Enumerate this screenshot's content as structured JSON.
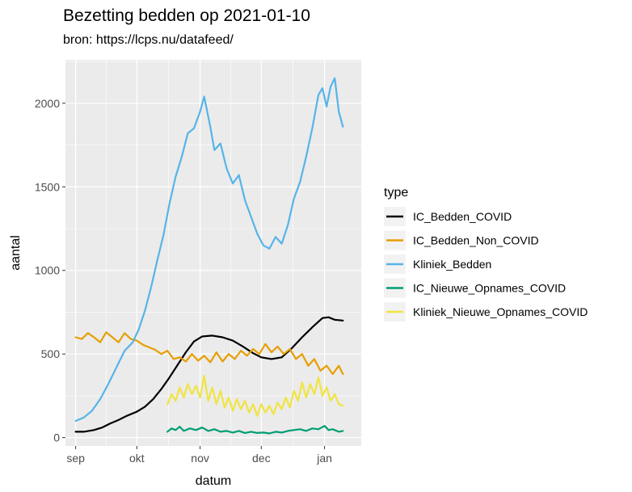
{
  "chart_data": {
    "type": "line",
    "title": "Bezetting bedden op 2021-01-10",
    "subtitle": "bron: https://lcps.nu/datafeed/",
    "xlabel": "datum",
    "ylabel": "aantal",
    "x_ticks": [
      {
        "date": "2020-09-01",
        "label": "sep"
      },
      {
        "date": "2020-10-01",
        "label": "okt"
      },
      {
        "date": "2020-11-01",
        "label": "nov"
      },
      {
        "date": "2020-12-01",
        "label": "dec"
      },
      {
        "date": "2021-01-01",
        "label": "jan"
      }
    ],
    "y_ticks": [
      0,
      500,
      1000,
      1500,
      2000
    ],
    "xlim": [
      "2020-08-27",
      "2021-01-19"
    ],
    "ylim": [
      -50,
      2260
    ],
    "grid": true,
    "legend": {
      "title": "type",
      "position": "right"
    },
    "series": [
      {
        "name": "IC_Bedden_COVID",
        "color": "#000000",
        "points": [
          [
            "2020-09-01",
            35
          ],
          [
            "2020-09-05",
            35
          ],
          [
            "2020-09-10",
            45
          ],
          [
            "2020-09-14",
            60
          ],
          [
            "2020-09-18",
            85
          ],
          [
            "2020-09-22",
            105
          ],
          [
            "2020-09-26",
            130
          ],
          [
            "2020-10-01",
            155
          ],
          [
            "2020-10-05",
            185
          ],
          [
            "2020-10-09",
            230
          ],
          [
            "2020-10-13",
            290
          ],
          [
            "2020-10-17",
            360
          ],
          [
            "2020-10-21",
            435
          ],
          [
            "2020-10-25",
            510
          ],
          [
            "2020-10-29",
            575
          ],
          [
            "2020-11-02",
            605
          ],
          [
            "2020-11-07",
            610
          ],
          [
            "2020-11-12",
            600
          ],
          [
            "2020-11-17",
            580
          ],
          [
            "2020-11-22",
            545
          ],
          [
            "2020-11-27",
            505
          ],
          [
            "2020-12-01",
            480
          ],
          [
            "2020-12-06",
            470
          ],
          [
            "2020-12-11",
            480
          ],
          [
            "2020-12-16",
            535
          ],
          [
            "2020-12-21",
            600
          ],
          [
            "2020-12-26",
            660
          ],
          [
            "2020-12-31",
            715
          ],
          [
            "2021-01-03",
            720
          ],
          [
            "2021-01-06",
            705
          ],
          [
            "2021-01-10",
            700
          ]
        ]
      },
      {
        "name": "IC_Bedden_Non_COVID",
        "color": "#E69F00",
        "points": [
          [
            "2020-09-01",
            600
          ],
          [
            "2020-09-04",
            590
          ],
          [
            "2020-09-07",
            625
          ],
          [
            "2020-09-10",
            600
          ],
          [
            "2020-09-13",
            570
          ],
          [
            "2020-09-16",
            630
          ],
          [
            "2020-09-19",
            600
          ],
          [
            "2020-09-22",
            570
          ],
          [
            "2020-09-25",
            625
          ],
          [
            "2020-09-28",
            590
          ],
          [
            "2020-10-01",
            580
          ],
          [
            "2020-10-04",
            555
          ],
          [
            "2020-10-07",
            540
          ],
          [
            "2020-10-10",
            525
          ],
          [
            "2020-10-13",
            500
          ],
          [
            "2020-10-16",
            520
          ],
          [
            "2020-10-19",
            470
          ],
          [
            "2020-10-22",
            480
          ],
          [
            "2020-10-25",
            455
          ],
          [
            "2020-10-28",
            500
          ],
          [
            "2020-10-31",
            460
          ],
          [
            "2020-11-03",
            490
          ],
          [
            "2020-11-06",
            450
          ],
          [
            "2020-11-09",
            510
          ],
          [
            "2020-11-12",
            455
          ],
          [
            "2020-11-15",
            500
          ],
          [
            "2020-11-18",
            470
          ],
          [
            "2020-11-21",
            520
          ],
          [
            "2020-11-24",
            490
          ],
          [
            "2020-11-27",
            530
          ],
          [
            "2020-11-30",
            500
          ],
          [
            "2020-12-03",
            560
          ],
          [
            "2020-12-06",
            510
          ],
          [
            "2020-12-09",
            545
          ],
          [
            "2020-12-12",
            500
          ],
          [
            "2020-12-15",
            530
          ],
          [
            "2020-12-18",
            470
          ],
          [
            "2020-12-21",
            500
          ],
          [
            "2020-12-24",
            430
          ],
          [
            "2020-12-27",
            470
          ],
          [
            "2020-12-30",
            400
          ],
          [
            "2021-01-02",
            430
          ],
          [
            "2021-01-05",
            380
          ],
          [
            "2021-01-08",
            430
          ],
          [
            "2021-01-10",
            380
          ]
        ]
      },
      {
        "name": "Kliniek_Bedden",
        "color": "#56B4E9",
        "points": [
          [
            "2020-09-01",
            100
          ],
          [
            "2020-09-05",
            120
          ],
          [
            "2020-09-09",
            160
          ],
          [
            "2020-09-13",
            230
          ],
          [
            "2020-09-17",
            320
          ],
          [
            "2020-09-21",
            420
          ],
          [
            "2020-09-25",
            520
          ],
          [
            "2020-09-29",
            570
          ],
          [
            "2020-10-02",
            650
          ],
          [
            "2020-10-05",
            760
          ],
          [
            "2020-10-08",
            900
          ],
          [
            "2020-10-11",
            1060
          ],
          [
            "2020-10-14",
            1210
          ],
          [
            "2020-10-17",
            1400
          ],
          [
            "2020-10-20",
            1560
          ],
          [
            "2020-10-23",
            1680
          ],
          [
            "2020-10-26",
            1820
          ],
          [
            "2020-10-29",
            1850
          ],
          [
            "2020-11-01",
            1950
          ],
          [
            "2020-11-03",
            2040
          ],
          [
            "2020-11-06",
            1860
          ],
          [
            "2020-11-08",
            1720
          ],
          [
            "2020-11-11",
            1760
          ],
          [
            "2020-11-14",
            1610
          ],
          [
            "2020-11-17",
            1520
          ],
          [
            "2020-11-20",
            1570
          ],
          [
            "2020-11-23",
            1420
          ],
          [
            "2020-11-26",
            1320
          ],
          [
            "2020-11-29",
            1220
          ],
          [
            "2020-12-02",
            1150
          ],
          [
            "2020-12-05",
            1130
          ],
          [
            "2020-12-08",
            1200
          ],
          [
            "2020-12-11",
            1160
          ],
          [
            "2020-12-14",
            1270
          ],
          [
            "2020-12-17",
            1430
          ],
          [
            "2020-12-20",
            1530
          ],
          [
            "2020-12-23",
            1680
          ],
          [
            "2020-12-26",
            1850
          ],
          [
            "2020-12-29",
            2050
          ],
          [
            "2020-12-31",
            2090
          ],
          [
            "2021-01-02",
            1980
          ],
          [
            "2021-01-04",
            2100
          ],
          [
            "2021-01-06",
            2150
          ],
          [
            "2021-01-08",
            1950
          ],
          [
            "2021-01-10",
            1860
          ]
        ]
      },
      {
        "name": "IC_Nieuwe_Opnames_COVID",
        "color": "#009E73",
        "points": [
          [
            "2020-10-16",
            35
          ],
          [
            "2020-10-18",
            55
          ],
          [
            "2020-10-20",
            45
          ],
          [
            "2020-10-22",
            65
          ],
          [
            "2020-10-24",
            40
          ],
          [
            "2020-10-27",
            55
          ],
          [
            "2020-10-30",
            45
          ],
          [
            "2020-11-02",
            60
          ],
          [
            "2020-11-05",
            40
          ],
          [
            "2020-11-08",
            50
          ],
          [
            "2020-11-11",
            35
          ],
          [
            "2020-11-14",
            40
          ],
          [
            "2020-11-17",
            30
          ],
          [
            "2020-11-20",
            40
          ],
          [
            "2020-11-23",
            28
          ],
          [
            "2020-11-26",
            35
          ],
          [
            "2020-11-29",
            28
          ],
          [
            "2020-12-02",
            30
          ],
          [
            "2020-12-05",
            25
          ],
          [
            "2020-12-08",
            35
          ],
          [
            "2020-12-11",
            30
          ],
          [
            "2020-12-14",
            40
          ],
          [
            "2020-12-17",
            45
          ],
          [
            "2020-12-20",
            50
          ],
          [
            "2020-12-23",
            40
          ],
          [
            "2020-12-26",
            55
          ],
          [
            "2020-12-29",
            50
          ],
          [
            "2021-01-01",
            70
          ],
          [
            "2021-01-03",
            45
          ],
          [
            "2021-01-05",
            50
          ],
          [
            "2021-01-08",
            35
          ],
          [
            "2021-01-10",
            40
          ]
        ]
      },
      {
        "name": "Kliniek_Nieuwe_Opnames_COVID",
        "color": "#F0E442",
        "points": [
          [
            "2020-10-16",
            200
          ],
          [
            "2020-10-18",
            260
          ],
          [
            "2020-10-20",
            220
          ],
          [
            "2020-10-22",
            300
          ],
          [
            "2020-10-24",
            240
          ],
          [
            "2020-10-26",
            320
          ],
          [
            "2020-10-28",
            260
          ],
          [
            "2020-10-30",
            310
          ],
          [
            "2020-11-01",
            240
          ],
          [
            "2020-11-03",
            370
          ],
          [
            "2020-11-05",
            220
          ],
          [
            "2020-11-07",
            300
          ],
          [
            "2020-11-09",
            200
          ],
          [
            "2020-11-11",
            280
          ],
          [
            "2020-11-13",
            180
          ],
          [
            "2020-11-15",
            240
          ],
          [
            "2020-11-17",
            160
          ],
          [
            "2020-11-19",
            230
          ],
          [
            "2020-11-21",
            170
          ],
          [
            "2020-11-23",
            220
          ],
          [
            "2020-11-25",
            150
          ],
          [
            "2020-11-27",
            200
          ],
          [
            "2020-11-29",
            130
          ],
          [
            "2020-12-01",
            200
          ],
          [
            "2020-12-03",
            150
          ],
          [
            "2020-12-05",
            190
          ],
          [
            "2020-12-07",
            140
          ],
          [
            "2020-12-09",
            210
          ],
          [
            "2020-12-11",
            170
          ],
          [
            "2020-12-13",
            240
          ],
          [
            "2020-12-15",
            180
          ],
          [
            "2020-12-17",
            280
          ],
          [
            "2020-12-19",
            220
          ],
          [
            "2020-12-21",
            330
          ],
          [
            "2020-12-23",
            240
          ],
          [
            "2020-12-25",
            320
          ],
          [
            "2020-12-27",
            260
          ],
          [
            "2020-12-29",
            360
          ],
          [
            "2020-12-31",
            250
          ],
          [
            "2021-01-02",
            300
          ],
          [
            "2021-01-04",
            220
          ],
          [
            "2021-01-06",
            260
          ],
          [
            "2021-01-08",
            200
          ],
          [
            "2021-01-10",
            190
          ]
        ]
      }
    ]
  }
}
